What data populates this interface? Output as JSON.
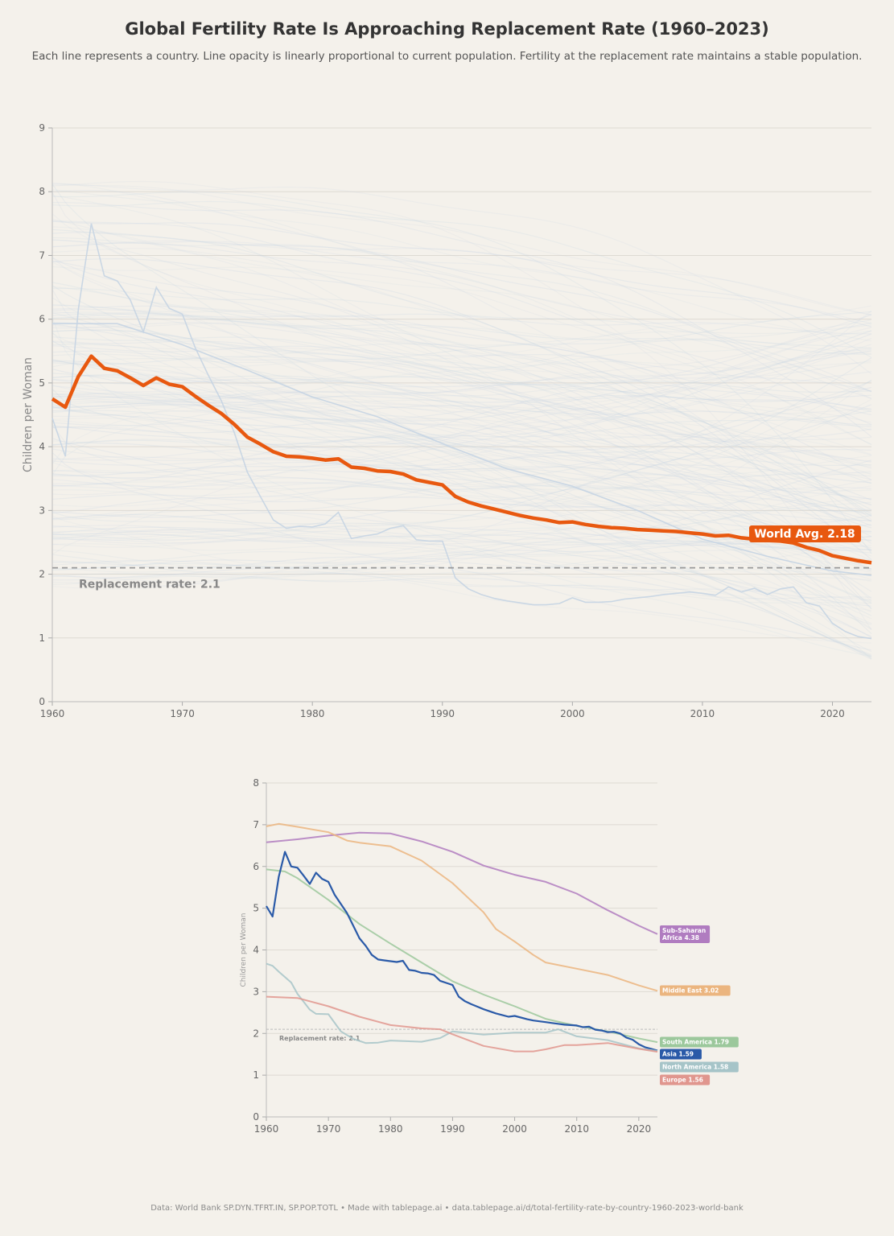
{
  "title": "Global Fertility Rate Is Approaching Replacement Rate (1960–2023)",
  "subtitle": "Each line represents a country. Line opacity is linearly proportional to current population. Fertility at the replacement rate maintains a stable population.",
  "footer": "Data: World Bank SP.DYN.TFRT.IN, SP.POP.TOTL  •  Made with tablepage.ai  •  data.tablepage.ai/d/total-fertility-rate-by-country-1960-2023-world-bank",
  "chart_data": [
    {
      "type": "line",
      "ylabel": "Children per Woman",
      "xlim": [
        1960,
        2023
      ],
      "ylim": [
        0,
        9
      ],
      "xticks": [
        "1960",
        "1970",
        "1980",
        "1990",
        "2000",
        "2010",
        "2020"
      ],
      "yticks": [
        "0",
        "1",
        "2",
        "3",
        "4",
        "5",
        "6",
        "7",
        "8",
        "9"
      ],
      "grid": "horizontal",
      "replacement_rate": 2.1,
      "replacement_label": "Replacement rate: 2.1",
      "world_avg_label": "World Avg. 2.18",
      "world_color": "#e8580f",
      "country_color": "#c5d4e3",
      "world_avg": {
        "x": [
          1960,
          1961,
          1962,
          1963,
          1964,
          1965,
          1966,
          1967,
          1968,
          1969,
          1970,
          1971,
          1972,
          1973,
          1974,
          1975,
          1976,
          1977,
          1978,
          1979,
          1980,
          1981,
          1982,
          1983,
          1984,
          1985,
          1986,
          1987,
          1988,
          1989,
          1990,
          1991,
          1992,
          1993,
          1994,
          1995,
          1996,
          1997,
          1998,
          1999,
          2000,
          2001,
          2002,
          2003,
          2004,
          2005,
          2006,
          2007,
          2008,
          2009,
          2010,
          2011,
          2012,
          2013,
          2014,
          2015,
          2016,
          2017,
          2018,
          2019,
          2020,
          2021,
          2022,
          2023
        ],
        "y": [
          4.75,
          4.62,
          5.1,
          5.42,
          5.23,
          5.19,
          5.08,
          4.96,
          5.08,
          4.98,
          4.94,
          4.79,
          4.65,
          4.52,
          4.35,
          4.15,
          4.04,
          3.92,
          3.85,
          3.84,
          3.82,
          3.79,
          3.81,
          3.68,
          3.66,
          3.62,
          3.61,
          3.57,
          3.48,
          3.44,
          3.4,
          3.22,
          3.13,
          3.07,
          3.02,
          2.97,
          2.92,
          2.88,
          2.85,
          2.81,
          2.82,
          2.78,
          2.75,
          2.73,
          2.72,
          2.7,
          2.69,
          2.68,
          2.67,
          2.65,
          2.63,
          2.6,
          2.61,
          2.57,
          2.55,
          2.53,
          2.52,
          2.49,
          2.42,
          2.37,
          2.29,
          2.25,
          2.21,
          2.18
        ]
      },
      "highlighted_countries": [
        {
          "x": [
            1960,
            1961,
            1962,
            1963,
            1964,
            1965,
            1966,
            1967,
            1968,
            1969,
            1970,
            1971,
            1972,
            1973,
            1974,
            1975,
            1976,
            1977,
            1978,
            1979,
            1980,
            1981,
            1982,
            1983,
            1984,
            1985,
            1986,
            1987,
            1988,
            1989,
            1990,
            1991,
            1992,
            1993,
            1994,
            1995,
            1996,
            1997,
            1998,
            1999,
            2000,
            2001,
            2002,
            2003,
            2004,
            2005,
            2006,
            2007,
            2008,
            2009,
            2010,
            2011,
            2012,
            2013,
            2014,
            2015,
            2016,
            2017,
            2018,
            2019,
            2020,
            2021,
            2022,
            2023
          ],
          "y": [
            4.45,
            3.85,
            6.15,
            7.5,
            6.68,
            6.6,
            6.3,
            5.8,
            6.5,
            6.17,
            6.08,
            5.55,
            5.12,
            4.72,
            4.22,
            3.6,
            3.22,
            2.85,
            2.72,
            2.75,
            2.74,
            2.79,
            2.97,
            2.56,
            2.6,
            2.63,
            2.72,
            2.76,
            2.54,
            2.52,
            2.52,
            1.94,
            1.77,
            1.68,
            1.62,
            1.58,
            1.55,
            1.52,
            1.52,
            1.54,
            1.63,
            1.56,
            1.56,
            1.57,
            1.61,
            1.63,
            1.65,
            1.68,
            1.7,
            1.72,
            1.7,
            1.67,
            1.8,
            1.72,
            1.78,
            1.68,
            1.77,
            1.8,
            1.55,
            1.5,
            1.23,
            1.1,
            1.02,
            0.99
          ]
        },
        {
          "x": [
            1960,
            1965,
            1970,
            1975,
            1980,
            1985,
            1990,
            1995,
            2000,
            2005,
            2010,
            2015,
            2020,
            2023
          ],
          "y": [
            5.93,
            5.93,
            5.6,
            5.2,
            4.78,
            4.47,
            4.05,
            3.65,
            3.38,
            3.0,
            2.55,
            2.28,
            2.05,
            1.98
          ]
        }
      ]
    },
    {
      "type": "line",
      "ylabel": "Children per Woman",
      "xlim": [
        1960,
        2023
      ],
      "ylim": [
        0,
        8
      ],
      "xticks": [
        "1960",
        "1970",
        "1980",
        "1990",
        "2000",
        "2010",
        "2020"
      ],
      "yticks": [
        "0",
        "1",
        "2",
        "3",
        "4",
        "5",
        "6",
        "7",
        "8"
      ],
      "grid": "horizontal",
      "replacement_rate": 2.1,
      "replacement_label": "Replacement rate: 2.1",
      "series": [
        {
          "name": "Sub-Saharan Africa",
          "label": "Sub-Saharan Africa 4.38",
          "color": "#b07cc0",
          "x": [
            1960,
            1965,
            1970,
            1975,
            1980,
            1985,
            1990,
            1995,
            2000,
            2005,
            2010,
            2015,
            2020,
            2023
          ],
          "y": [
            6.58,
            6.65,
            6.74,
            6.81,
            6.79,
            6.6,
            6.35,
            6.02,
            5.8,
            5.63,
            5.35,
            4.95,
            4.58,
            4.38
          ]
        },
        {
          "name": "Middle East",
          "label": "Middle East 3.02",
          "color": "#ebb57f",
          "x": [
            1960,
            1962,
            1965,
            1970,
            1973,
            1975,
            1980,
            1985,
            1990,
            1995,
            1997,
            2000,
            2003,
            2005,
            2010,
            2015,
            2020,
            2023
          ],
          "y": [
            6.96,
            7.02,
            6.95,
            6.82,
            6.62,
            6.57,
            6.48,
            6.14,
            5.6,
            4.9,
            4.5,
            4.2,
            3.88,
            3.7,
            3.55,
            3.4,
            3.15,
            3.02
          ]
        },
        {
          "name": "South America",
          "label": "South America 1.79",
          "color": "#9cc89c",
          "x": [
            1960,
            1963,
            1965,
            1970,
            1975,
            1980,
            1985,
            1990,
            1995,
            2000,
            2005,
            2010,
            2015,
            2020,
            2023
          ],
          "y": [
            5.93,
            5.88,
            5.72,
            5.2,
            4.62,
            4.15,
            3.7,
            3.25,
            2.93,
            2.65,
            2.35,
            2.18,
            2.05,
            1.88,
            1.79
          ]
        },
        {
          "name": "Asia",
          "label": "Asia 1.59",
          "color": "#2a5aa8",
          "x": [
            1960,
            1961,
            1962,
            1963,
            1964,
            1965,
            1966,
            1967,
            1968,
            1969,
            1970,
            1971,
            1972,
            1973,
            1974,
            1975,
            1976,
            1977,
            1978,
            1979,
            1980,
            1981,
            1982,
            1983,
            1984,
            1985,
            1986,
            1987,
            1988,
            1989,
            1990,
            1991,
            1992,
            1993,
            1994,
            1995,
            1996,
            1997,
            1998,
            1999,
            2000,
            2001,
            2002,
            2003,
            2004,
            2005,
            2006,
            2007,
            2008,
            2009,
            2010,
            2011,
            2012,
            2013,
            2014,
            2015,
            2016,
            2017,
            2018,
            2019,
            2020,
            2021,
            2022,
            2023
          ],
          "y": [
            5.05,
            4.8,
            5.75,
            6.35,
            6.0,
            5.97,
            5.78,
            5.58,
            5.85,
            5.7,
            5.63,
            5.32,
            5.1,
            4.88,
            4.58,
            4.28,
            4.1,
            3.88,
            3.77,
            3.75,
            3.73,
            3.71,
            3.74,
            3.52,
            3.5,
            3.45,
            3.44,
            3.4,
            3.26,
            3.21,
            3.16,
            2.88,
            2.77,
            2.7,
            2.64,
            2.58,
            2.53,
            2.48,
            2.44,
            2.4,
            2.42,
            2.38,
            2.34,
            2.31,
            2.29,
            2.27,
            2.25,
            2.23,
            2.21,
            2.2,
            2.19,
            2.15,
            2.16,
            2.09,
            2.07,
            2.03,
            2.04,
            2.0,
            1.9,
            1.85,
            1.74,
            1.67,
            1.63,
            1.59
          ]
        },
        {
          "name": "North America",
          "label": "North America 1.58",
          "color": "#a6c4c8",
          "x": [
            1960,
            1961,
            1962,
            1964,
            1965,
            1967,
            1968,
            1970,
            1972,
            1974,
            1976,
            1978,
            1980,
            1985,
            1988,
            1990,
            1995,
            2000,
            2005,
            2007,
            2010,
            2015,
            2020,
            2023
          ],
          "y": [
            3.67,
            3.62,
            3.48,
            3.22,
            2.95,
            2.57,
            2.47,
            2.46,
            2.05,
            1.87,
            1.77,
            1.78,
            1.83,
            1.8,
            1.89,
            2.05,
            1.97,
            2.02,
            2.02,
            2.1,
            1.93,
            1.84,
            1.64,
            1.58
          ]
        },
        {
          "name": "Europe",
          "label": "Europe 1.56",
          "color": "#e0968e",
          "x": [
            1960,
            1965,
            1970,
            1975,
            1980,
            1985,
            1988,
            1990,
            1995,
            2000,
            2003,
            2005,
            2008,
            2010,
            2015,
            2020,
            2023
          ],
          "y": [
            2.88,
            2.85,
            2.65,
            2.4,
            2.2,
            2.12,
            2.1,
            1.98,
            1.7,
            1.57,
            1.57,
            1.62,
            1.72,
            1.72,
            1.77,
            1.63,
            1.56
          ]
        }
      ]
    }
  ]
}
